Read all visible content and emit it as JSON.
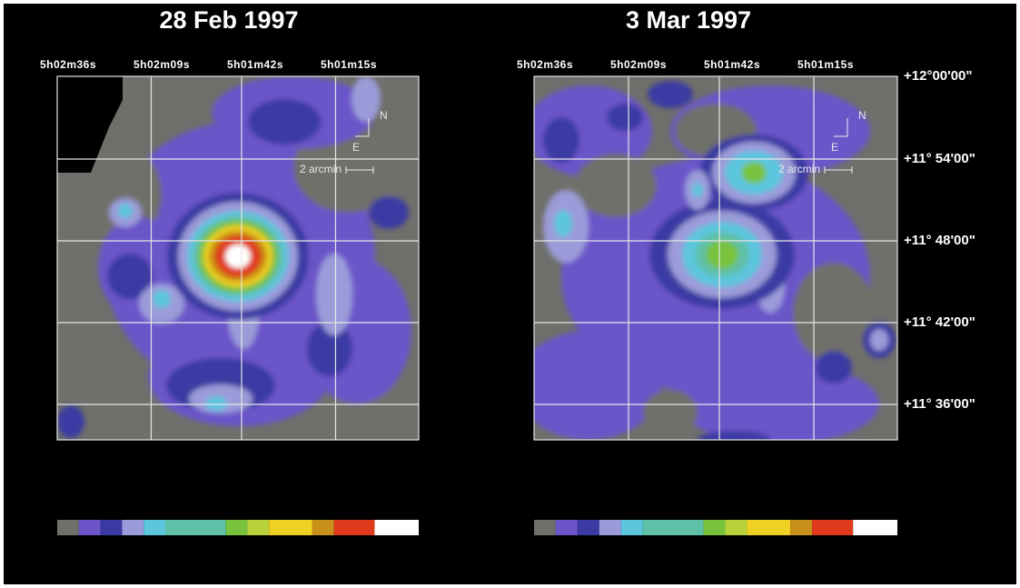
{
  "panels": [
    {
      "title": "28 Feb 1997",
      "ra_labels": [
        "5h02m36s",
        "5h02m09s",
        "5h01m42s",
        "5h01m15s"
      ],
      "compass": {
        "north": "N",
        "east": "E"
      },
      "scale_label": "2 arcmin"
    },
    {
      "title": "3 Mar 1997",
      "ra_labels": [
        "5h02m36s",
        "5h02m09s",
        "5h01m42s",
        "5h01m15s"
      ],
      "compass": {
        "north": "N",
        "east": "E"
      },
      "scale_label": "2 arcmin"
    }
  ],
  "dec_labels": [
    "+12°00'00\"",
    "+11° 54'00\"",
    "+11° 48'00\"",
    "+11° 42'00\"",
    "+11° 36'00\""
  ]
}
